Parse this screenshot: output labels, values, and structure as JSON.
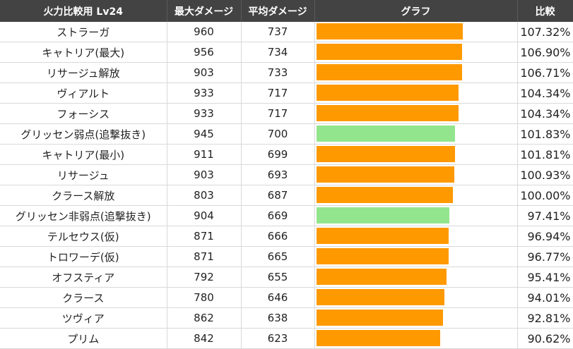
{
  "header": {
    "name": "火力比較用 Lv24",
    "max": "最大ダメージ",
    "avg": "平均ダメージ",
    "graph": "グラフ",
    "ratio": "比較"
  },
  "colors": {
    "normal": "#ff9900",
    "highlight": "#93e58d"
  },
  "chart_data": {
    "type": "table",
    "value_max": 107.32,
    "rows": [
      {
        "name": "ストラーガ",
        "max": "960",
        "avg": "737",
        "ratio": "107.32%",
        "value": 107.32,
        "color": "normal"
      },
      {
        "name": "キャトリア(最大)",
        "max": "956",
        "avg": "734",
        "ratio": "106.90%",
        "value": 106.9,
        "color": "normal"
      },
      {
        "name": "リサージュ解放",
        "max": "903",
        "avg": "733",
        "ratio": "106.71%",
        "value": 106.71,
        "color": "normal"
      },
      {
        "name": "ヴィアルト",
        "max": "933",
        "avg": "717",
        "ratio": "104.34%",
        "value": 104.34,
        "color": "normal"
      },
      {
        "name": "フォーシス",
        "max": "933",
        "avg": "717",
        "ratio": "104.34%",
        "value": 104.34,
        "color": "normal"
      },
      {
        "name": "グリッセン弱点(追撃抜き)",
        "max": "945",
        "avg": "700",
        "ratio": "101.83%",
        "value": 101.83,
        "color": "highlight"
      },
      {
        "name": "キャトリア(最小)",
        "max": "911",
        "avg": "699",
        "ratio": "101.81%",
        "value": 101.81,
        "color": "normal"
      },
      {
        "name": "リサージュ",
        "max": "903",
        "avg": "693",
        "ratio": "100.93%",
        "value": 100.93,
        "color": "normal"
      },
      {
        "name": "クラース解放",
        "max": "803",
        "avg": "687",
        "ratio": "100.00%",
        "value": 100.0,
        "color": "normal"
      },
      {
        "name": "グリッセン非弱点(追撃抜き)",
        "max": "904",
        "avg": "669",
        "ratio": "97.41%",
        "value": 97.41,
        "color": "highlight"
      },
      {
        "name": "テルセウス(仮)",
        "max": "871",
        "avg": "666",
        "ratio": "96.94%",
        "value": 96.94,
        "color": "normal"
      },
      {
        "name": "トロワーデ(仮)",
        "max": "871",
        "avg": "665",
        "ratio": "96.77%",
        "value": 96.77,
        "color": "normal"
      },
      {
        "name": "オフスティア",
        "max": "792",
        "avg": "655",
        "ratio": "95.41%",
        "value": 95.41,
        "color": "normal"
      },
      {
        "name": "クラース",
        "max": "780",
        "avg": "646",
        "ratio": "94.01%",
        "value": 94.01,
        "color": "normal"
      },
      {
        "name": "ツヴィア",
        "max": "862",
        "avg": "638",
        "ratio": "92.81%",
        "value": 92.81,
        "color": "normal"
      },
      {
        "name": "プリム",
        "max": "842",
        "avg": "623",
        "ratio": "90.62%",
        "value": 90.62,
        "color": "normal"
      }
    ]
  }
}
